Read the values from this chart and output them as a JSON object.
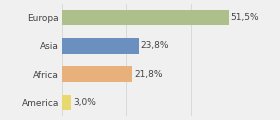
{
  "categories": [
    "Europa",
    "Asia",
    "Africa",
    "America"
  ],
  "values": [
    51.5,
    23.8,
    21.8,
    3.0
  ],
  "labels": [
    "51,5%",
    "23,8%",
    "21,8%",
    "3,0%"
  ],
  "bar_colors": [
    "#adbf8a",
    "#6b8fbf",
    "#e8b07a",
    "#e8d870"
  ],
  "background_color": "#f0f0f0",
  "xlim": [
    0,
    57
  ],
  "label_fontsize": 6.5,
  "cat_fontsize": 6.5,
  "bar_height": 0.55
}
